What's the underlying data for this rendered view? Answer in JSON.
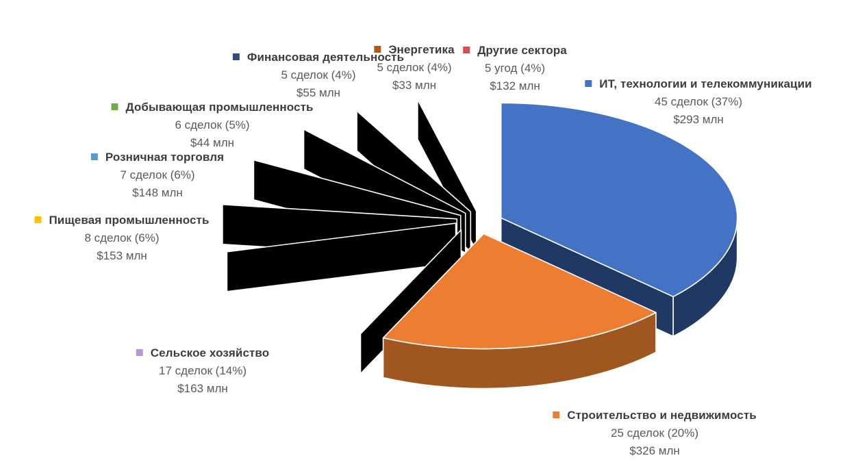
{
  "page": {
    "background": "#FFFFFF"
  },
  "chart_data": {
    "type": "pie",
    "style": "3d-exploded-pie",
    "title": "",
    "legend_position": "markers-attached-to-data-labels",
    "start_angle_deg": 0,
    "direction": "clockwise",
    "explosion_pct": 10,
    "total_percent": 100,
    "grid": false,
    "text_colors": {
      "name": "#3C3C3C",
      "values": "#595959"
    },
    "slices": [
      {
        "id": "it-telecom",
        "label": "ИТ, технологии и телекоммуникации",
        "deals": 45,
        "percent": 37,
        "value_musd": 293,
        "deals_line": "45 сделок (37%)",
        "value_line": "$293 млн",
        "color": "#4472C4",
        "side_color": "#1F3864"
      },
      {
        "id": "construction-real-estate",
        "label": "Строительство и недвижимость",
        "deals": 25,
        "percent": 20,
        "value_musd": 326,
        "deals_line": "25 сделок (20%)",
        "value_line": "$326 млн",
        "color": "#ED7D31",
        "side_color": "#A0571F"
      },
      {
        "id": "agriculture",
        "label": "Сельское хозяйство",
        "deals": 17,
        "percent": 14,
        "value_musd": 163,
        "deals_line": "17 сделок (14%)",
        "value_line": "$163 млн",
        "color": "#B795D6",
        "side_color": "#9C7ABD"
      },
      {
        "id": "food-industry",
        "label": "Пищевая промышленность",
        "deals": 8,
        "percent": 6,
        "value_musd": 153,
        "deals_line": "8 сделок (6%)",
        "value_line": "$153 млн",
        "color": "#FFC000",
        "side_color": "#7F6200"
      },
      {
        "id": "retail",
        "label": "Розничная торговля",
        "deals": 7,
        "percent": 6,
        "value_musd": 148,
        "deals_line": "7 сделок (6%)",
        "value_line": "$148 млн",
        "color": "#5B9BD5",
        "side_color": "#27496B"
      },
      {
        "id": "mining",
        "label": "Добывающая промышленность",
        "deals": 6,
        "percent": 5,
        "value_musd": 44,
        "deals_line": "6 сделок (5%)",
        "value_line": "$44 млн",
        "color": "#70AD47",
        "side_color": "#3B5A22"
      },
      {
        "id": "finance",
        "label": "Финансовая деятельность",
        "deals": 5,
        "percent": 4,
        "value_musd": 55,
        "deals_line": "5 сделок (4%)",
        "value_line": "$55 млн",
        "color": "#2E4D7B",
        "side_color": "#16243E"
      },
      {
        "id": "energy",
        "label": "Энергетика",
        "deals": 5,
        "percent": 4,
        "value_musd": 33,
        "deals_line": "5 сделок (4%)",
        "value_line": "$33 млн",
        "color": "#AC5B1E",
        "side_color": "#46250F"
      },
      {
        "id": "other-sectors",
        "label": "Другие сектора",
        "deals": 5,
        "percent": 4,
        "value_musd": 132,
        "deals_line": "5 угод (4%)",
        "value_line": "$132 млн",
        "color": "#CF5156",
        "side_color": "#6F2327"
      }
    ]
  }
}
